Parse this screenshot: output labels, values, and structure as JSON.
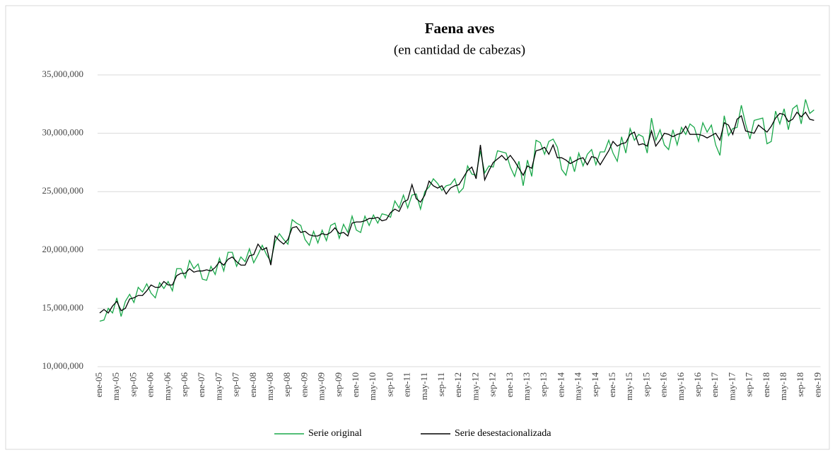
{
  "chart_data": {
    "type": "line",
    "title": "Faena aves",
    "subtitle": "(en cantidad de cabezas)",
    "categories": [
      "ene-05",
      null,
      null,
      null,
      "may-05",
      null,
      null,
      null,
      "sep-05",
      null,
      null,
      null,
      "ene-06",
      null,
      null,
      null,
      "may-06",
      null,
      null,
      null,
      "sep-06",
      null,
      null,
      null,
      "ene-07",
      null,
      null,
      null,
      "may-07",
      null,
      null,
      null,
      "sep-07",
      null,
      null,
      null,
      "ene-08",
      null,
      null,
      null,
      "may-08",
      null,
      null,
      null,
      "sep-08",
      null,
      null,
      null,
      "ene-09",
      null,
      null,
      null,
      "may-09",
      null,
      null,
      null,
      "sep-09",
      null,
      null,
      null,
      "ene-10",
      null,
      null,
      null,
      "may-10",
      null,
      null,
      null,
      "sep-10",
      null,
      null,
      null,
      "ene-11",
      null,
      null,
      null,
      "may-11",
      null,
      null,
      null,
      "sep-11",
      null,
      null,
      null,
      "ene-12",
      null,
      null,
      null,
      "may-12",
      null,
      null,
      null,
      "sep-12",
      null,
      null,
      null,
      "ene-13",
      null,
      null,
      null,
      "may-13",
      null,
      null,
      null,
      "sep-13",
      null,
      null,
      null,
      "ene-14",
      null,
      null,
      null,
      "may-14",
      null,
      null,
      null,
      "sep-14",
      null,
      null,
      null,
      "ene-15",
      null,
      null,
      null,
      "may-15",
      null,
      null,
      null,
      "sep-15",
      null,
      null,
      null,
      "ene-16",
      null,
      null,
      null,
      "may-16",
      null,
      null,
      null,
      "sep-16",
      null,
      null,
      null,
      "ene-17",
      null,
      null,
      null,
      "may-17",
      null,
      null,
      null,
      "sep-17",
      null,
      null,
      null,
      "ene-18",
      null,
      null,
      null,
      "may-18",
      null,
      null,
      null,
      "sep-18",
      null,
      null,
      null,
      "ene-19"
    ],
    "series": [
      {
        "name": "Serie original",
        "color": "#1aa84a",
        "values": [
          13900000,
          14000000,
          15000000,
          14600000,
          15900000,
          14300000,
          15600000,
          16200000,
          15500000,
          16800000,
          16400000,
          17100000,
          16300000,
          15900000,
          17200000,
          16700000,
          17300000,
          16500000,
          18400000,
          18400000,
          17600000,
          19100000,
          18400000,
          18800000,
          17500000,
          17400000,
          18600000,
          17900000,
          19300000,
          18200000,
          19800000,
          19800000,
          18600000,
          19400000,
          19000000,
          20100000,
          18900000,
          19600000,
          20400000,
          19600000,
          19000000,
          20700000,
          21400000,
          20900000,
          20500000,
          22600000,
          22300000,
          22100000,
          20900000,
          20400000,
          21600000,
          20600000,
          21700000,
          20800000,
          22100000,
          22300000,
          21000000,
          22200000,
          21500000,
          22900000,
          21700000,
          21500000,
          22900000,
          22100000,
          23000000,
          22300000,
          23100000,
          23000000,
          22800000,
          24200000,
          23600000,
          24700000,
          23600000,
          24700000,
          24800000,
          23500000,
          25000000,
          25400000,
          26100000,
          25700000,
          25100000,
          25500000,
          25600000,
          26100000,
          24900000,
          25300000,
          27200000,
          26500000,
          26400000,
          28500000,
          26600000,
          27200000,
          27100000,
          28500000,
          28400000,
          28300000,
          27100000,
          26300000,
          27600000,
          25500000,
          27700000,
          26300000,
          29400000,
          29200000,
          28200000,
          29300000,
          29500000,
          28800000,
          26900000,
          26400000,
          28000000,
          26700000,
          28300000,
          27200000,
          28200000,
          28600000,
          27300000,
          28400000,
          28400000,
          29400000,
          28300000,
          27600000,
          29700000,
          28300000,
          30400000,
          29400000,
          29900000,
          29700000,
          28300000,
          31300000,
          29400000,
          30300000,
          29000000,
          28600000,
          30300000,
          29000000,
          30500000,
          29900000,
          30800000,
          30500000,
          29300000,
          30900000,
          30100000,
          30700000,
          29000000,
          28100000,
          31500000,
          29800000,
          30400000,
          30500000,
          32400000,
          30800000,
          29500000,
          31100000,
          31200000,
          31300000,
          29100000,
          29300000,
          31900000,
          30800000,
          32100000,
          30300000,
          32100000,
          32400000,
          30800000,
          32900000,
          31700000,
          32000000,
          null
        ]
      },
      {
        "name": "Serie desestacionalizada",
        "color": "#000000",
        "values": [
          14600000,
          14900000,
          14600000,
          15200000,
          15600000,
          14800000,
          15000000,
          15800000,
          15900000,
          16100000,
          16100000,
          16500000,
          17000000,
          16800000,
          16800000,
          17300000,
          17000000,
          17000000,
          17800000,
          18000000,
          18000000,
          18400000,
          18100000,
          18200000,
          18200000,
          18300000,
          18200000,
          18500000,
          19000000,
          18700000,
          19200000,
          19400000,
          19000000,
          18700000,
          18700000,
          19500000,
          19600000,
          20500000,
          20000000,
          20200000,
          18700000,
          21200000,
          20800000,
          20500000,
          20900000,
          21900000,
          22000000,
          21500000,
          21600000,
          21300000,
          21200000,
          21200000,
          21400000,
          21300000,
          21500000,
          21900000,
          21400000,
          21500000,
          21200000,
          22300000,
          22400000,
          22400000,
          22500000,
          22700000,
          22700000,
          22800000,
          22500000,
          22600000,
          23200000,
          23500000,
          23300000,
          24100000,
          24300000,
          25600000,
          24400000,
          24100000,
          24700000,
          25900000,
          25500000,
          25300000,
          25500000,
          24800000,
          25300000,
          25500000,
          25600000,
          26200000,
          26800000,
          27100000,
          26100000,
          29000000,
          26000000,
          26800000,
          27500000,
          27800000,
          28100000,
          27700000,
          28100000,
          27600000,
          27000000,
          26400000,
          27200000,
          27000000,
          28500000,
          28600000,
          28800000,
          28200000,
          29000000,
          27900000,
          27900000,
          27700000,
          27400000,
          27600000,
          27800000,
          27900000,
          27300000,
          28000000,
          27900000,
          27300000,
          27900000,
          28500000,
          29300000,
          28900000,
          29100000,
          29200000,
          29900000,
          30100000,
          29000000,
          29100000,
          28900000,
          30200000,
          28900000,
          29400000,
          30000000,
          29900000,
          29700000,
          29900000,
          30000000,
          30600000,
          29900000,
          29900000,
          29900000,
          29800000,
          29600000,
          29800000,
          30000000,
          29400000,
          30900000,
          30700000,
          29900000,
          31200000,
          31500000,
          30200000,
          30100000,
          30000000,
          30700000,
          30400000,
          30100000,
          30600000,
          31300000,
          31700000,
          31600000,
          31000000,
          31200000,
          31800000,
          31400000,
          31800000,
          31200000,
          31100000,
          null
        ]
      }
    ],
    "ylim": [
      10000000,
      35000000
    ],
    "yticks": [
      {
        "value": 10000000,
        "label": "10,000,000"
      },
      {
        "value": 15000000,
        "label": "15,000,000"
      },
      {
        "value": 20000000,
        "label": "20,000,000"
      },
      {
        "value": 25000000,
        "label": "25,000,000"
      },
      {
        "value": 30000000,
        "label": "30,000,000"
      },
      {
        "value": 35000000,
        "label": "35,000,000"
      }
    ],
    "grid": true,
    "legend": "bottom"
  }
}
